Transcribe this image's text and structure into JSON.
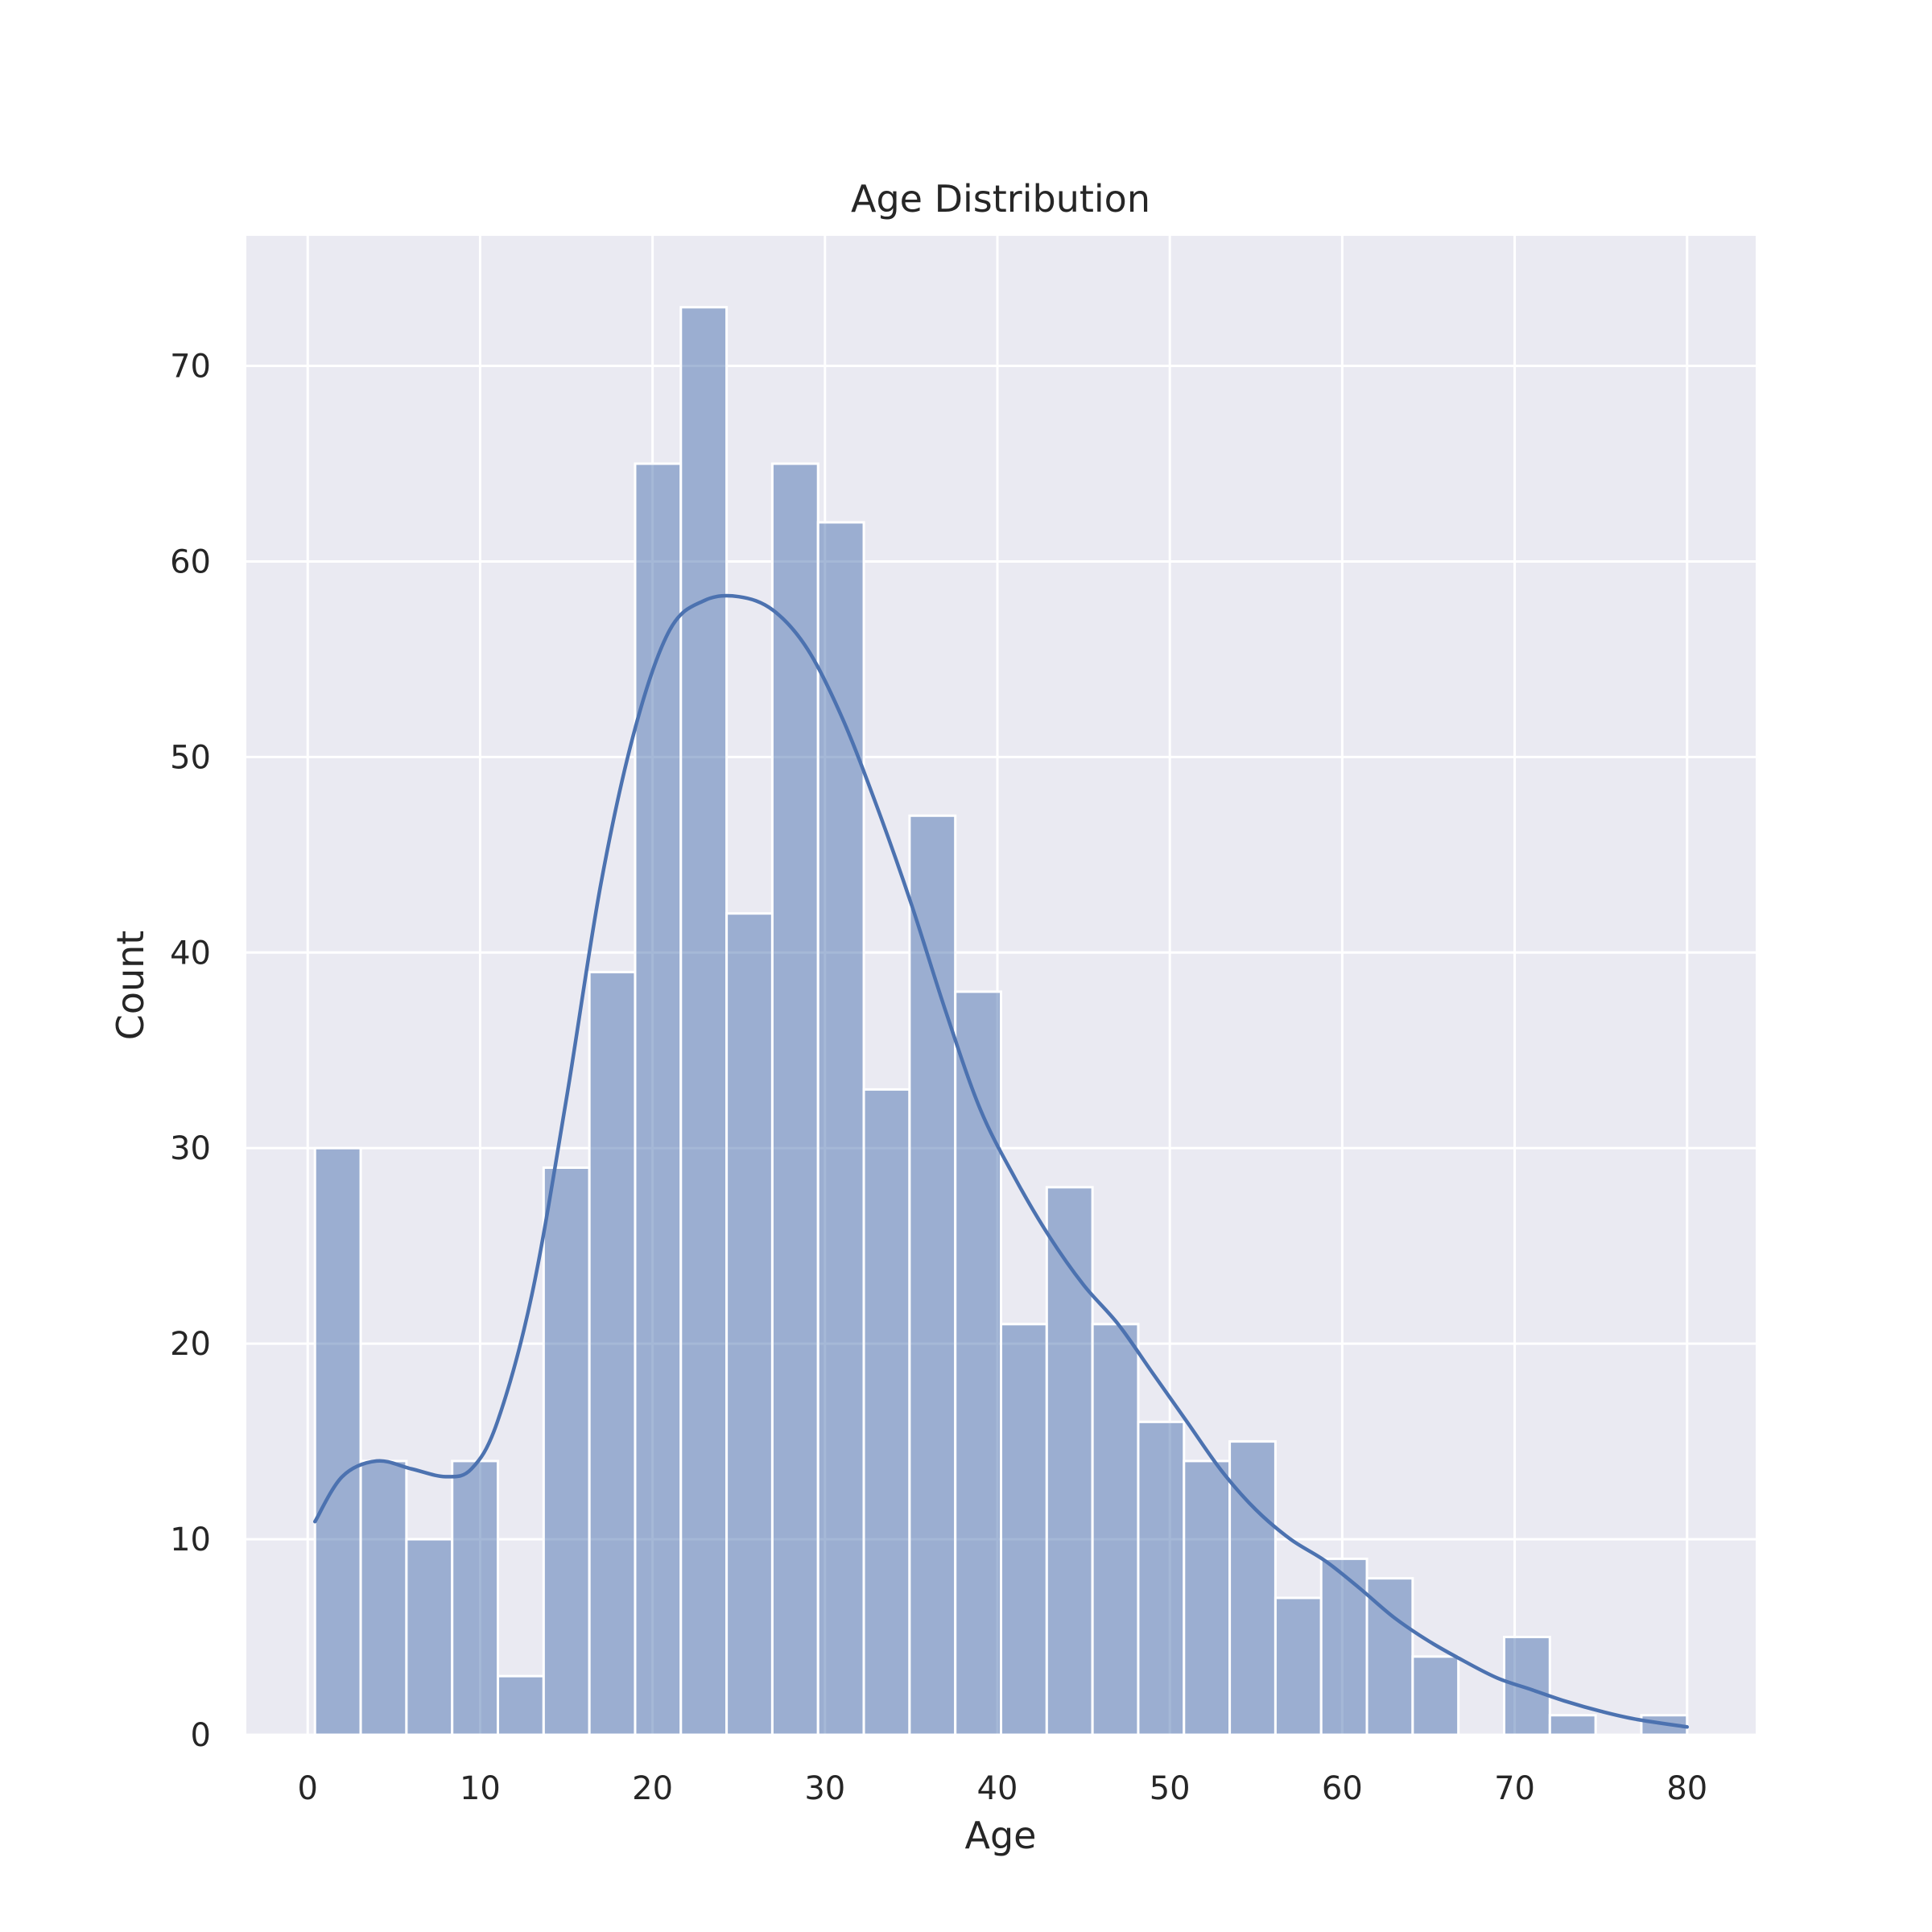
{
  "chart_data": {
    "type": "bar",
    "title": "Age Distribution",
    "xlabel": "Age",
    "ylabel": "Count",
    "x_range": [
      0.42,
      80.0
    ],
    "xlim": [
      -3.56,
      83.98
    ],
    "ylim": [
      0,
      76.65
    ],
    "xticks": [
      0,
      10,
      20,
      30,
      40,
      50,
      60,
      70,
      80
    ],
    "yticks": [
      0,
      10,
      20,
      30,
      40,
      50,
      60,
      70
    ],
    "grid": true,
    "bar_color": "#4c72b0",
    "bar_opacity": 0.5,
    "line_color": "#4c72b0",
    "background_color": "#eaeaf2",
    "values": [
      30,
      14,
      10,
      14,
      3,
      29,
      39,
      65,
      73,
      42,
      65,
      62,
      33,
      47,
      38,
      21,
      28,
      21,
      16,
      14,
      15,
      7,
      9,
      8,
      4,
      0,
      5,
      1,
      0,
      1
    ],
    "kde": {
      "x": [
        0.42,
        2,
        4,
        6,
        8,
        9.5,
        11,
        13,
        15,
        17,
        19,
        21,
        23,
        25,
        27,
        29,
        31,
        33,
        35,
        37,
        39,
        41,
        43,
        45,
        47,
        49,
        51,
        53,
        55,
        57,
        59,
        61,
        63,
        65,
        67,
        69,
        71,
        73,
        75,
        77,
        80
      ],
      "y": [
        10.9,
        13.2,
        14.0,
        13.6,
        13.2,
        13.6,
        16.0,
        22.5,
        32.5,
        43.5,
        51.5,
        56.5,
        58.0,
        58.2,
        57.5,
        55.5,
        52.0,
        47.5,
        42.5,
        37.0,
        32.0,
        28.5,
        25.5,
        23.0,
        21.0,
        18.5,
        16.0,
        13.5,
        11.5,
        10.0,
        8.9,
        7.5,
        6.0,
        4.8,
        3.8,
        2.9,
        2.3,
        1.7,
        1.2,
        0.8,
        0.4
      ]
    }
  }
}
